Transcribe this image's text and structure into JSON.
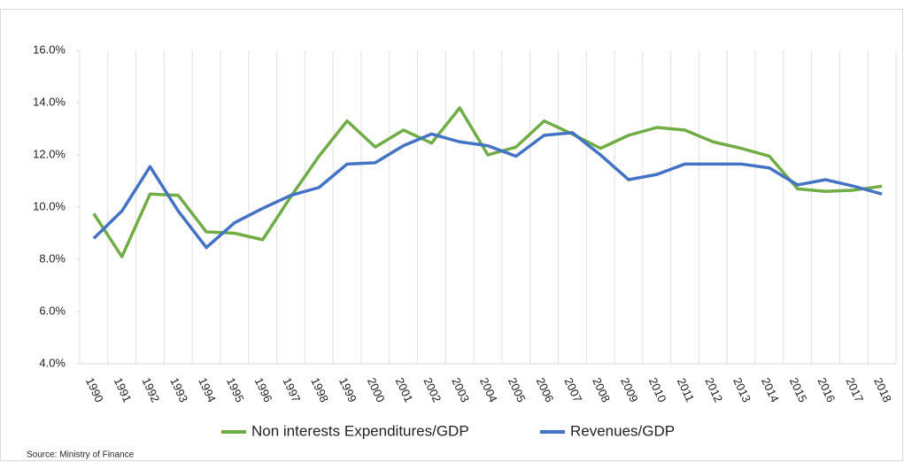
{
  "chart_data": {
    "type": "line",
    "categories": [
      "1990",
      "1991",
      "1992",
      "1993",
      "1994",
      "1995",
      "1996",
      "1997",
      "1998",
      "1999",
      "2000",
      "2001",
      "2002",
      "2003",
      "2004",
      "2005",
      "2006",
      "2007",
      "2008",
      "2009",
      "2010",
      "2011",
      "2012",
      "2013",
      "2014",
      "2015",
      "2016",
      "2017",
      "2018"
    ],
    "series": [
      {
        "name": "Non interests Expenditures/GDP",
        "color": "#70ad47",
        "values": [
          9.75,
          8.1,
          10.5,
          10.45,
          9.05,
          9.0,
          8.75,
          10.4,
          11.95,
          13.3,
          12.3,
          12.95,
          12.45,
          13.8,
          12.0,
          12.3,
          13.3,
          12.8,
          12.25,
          12.75,
          13.05,
          12.95,
          12.5,
          12.25,
          11.95,
          10.7,
          10.6,
          10.65,
          10.8
        ]
      },
      {
        "name": "Revenues/GDP",
        "color": "#4472c4",
        "values": [
          8.8,
          9.85,
          11.55,
          9.85,
          8.45,
          9.4,
          9.95,
          10.45,
          10.75,
          11.65,
          11.7,
          12.35,
          12.8,
          12.5,
          12.35,
          11.95,
          12.75,
          12.85,
          12.0,
          11.05,
          11.25,
          11.65,
          11.65,
          11.65,
          11.5,
          10.85,
          11.05,
          10.8,
          10.5
        ]
      }
    ],
    "ylim": [
      4,
      16
    ],
    "yticks": [
      {
        "value": 4,
        "label": "4.0%"
      },
      {
        "value": 6,
        "label": "6.0%"
      },
      {
        "value": 8,
        "label": "8.0%"
      },
      {
        "value": 10,
        "label": "10.0%"
      },
      {
        "value": 12,
        "label": "12.0%"
      },
      {
        "value": 14,
        "label": "14.0%"
      },
      {
        "value": 16,
        "label": "16.0%"
      }
    ],
    "source": "Source: Ministry of Finance"
  }
}
